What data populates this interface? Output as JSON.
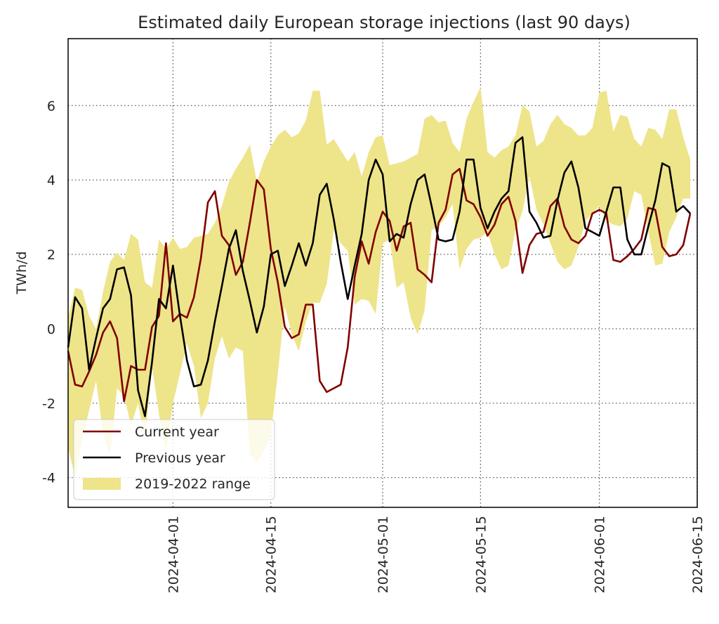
{
  "chart_data": {
    "type": "line",
    "title": "Estimated daily European storage injections (last 90 days)",
    "xlabel": "",
    "ylabel": "TWh/d",
    "xlim": [
      "2024-03-17",
      "2024-06-15"
    ],
    "ylim": [
      -4.8,
      7.8
    ],
    "grid": true,
    "legend_position": "bottom-left",
    "yticks": [
      -4,
      -2,
      0,
      2,
      4,
      6
    ],
    "xticks": [
      "2024-04-01",
      "2024-04-15",
      "2024-05-01",
      "2024-05-15",
      "2024-06-01",
      "2024-06-15"
    ],
    "x": [
      "2024-03-17",
      "2024-03-18",
      "2024-03-19",
      "2024-03-20",
      "2024-03-21",
      "2024-03-22",
      "2024-03-23",
      "2024-03-24",
      "2024-03-25",
      "2024-03-26",
      "2024-03-27",
      "2024-03-28",
      "2024-03-29",
      "2024-03-30",
      "2024-03-31",
      "2024-04-01",
      "2024-04-02",
      "2024-04-03",
      "2024-04-04",
      "2024-04-05",
      "2024-04-06",
      "2024-04-07",
      "2024-04-08",
      "2024-04-09",
      "2024-04-10",
      "2024-04-11",
      "2024-04-12",
      "2024-04-13",
      "2024-04-14",
      "2024-04-15",
      "2024-04-16",
      "2024-04-17",
      "2024-04-18",
      "2024-04-19",
      "2024-04-20",
      "2024-04-21",
      "2024-04-22",
      "2024-04-23",
      "2024-04-24",
      "2024-04-25",
      "2024-04-26",
      "2024-04-27",
      "2024-04-28",
      "2024-04-29",
      "2024-04-30",
      "2024-05-01",
      "2024-05-02",
      "2024-05-03",
      "2024-05-04",
      "2024-05-05",
      "2024-05-06",
      "2024-05-07",
      "2024-05-08",
      "2024-05-09",
      "2024-05-10",
      "2024-05-11",
      "2024-05-12",
      "2024-05-13",
      "2024-05-14",
      "2024-05-15",
      "2024-05-16",
      "2024-05-17",
      "2024-05-18",
      "2024-05-19",
      "2024-05-20",
      "2024-05-21",
      "2024-05-22",
      "2024-05-23",
      "2024-05-24",
      "2024-05-25",
      "2024-05-26",
      "2024-05-27",
      "2024-05-28",
      "2024-05-29",
      "2024-05-30",
      "2024-05-31",
      "2024-06-01",
      "2024-06-02",
      "2024-06-03",
      "2024-06-04",
      "2024-06-05",
      "2024-06-06",
      "2024-06-07",
      "2024-06-08",
      "2024-06-09",
      "2024-06-10",
      "2024-06-11",
      "2024-06-12",
      "2024-06-13",
      "2024-06-14"
    ],
    "series": [
      {
        "name": "Current year",
        "color": "#800000",
        "values": [
          -0.6,
          -1.5,
          -1.55,
          -1.15,
          -0.7,
          -0.1,
          0.2,
          -0.25,
          -1.95,
          -1.0,
          -1.1,
          -1.1,
          0.05,
          0.35,
          2.3,
          0.2,
          0.4,
          0.3,
          0.85,
          1.9,
          3.4,
          3.7,
          2.5,
          2.25,
          1.45,
          1.8,
          2.85,
          4.0,
          3.75,
          2.15,
          1.25,
          0.05,
          -0.25,
          -0.15,
          0.65,
          0.65,
          -1.4,
          -1.7,
          -1.6,
          -1.5,
          -0.5,
          1.4,
          2.35,
          1.75,
          2.6,
          3.15,
          2.9,
          2.1,
          2.75,
          2.85,
          1.6,
          1.45,
          1.25,
          2.85,
          3.2,
          4.15,
          4.3,
          3.45,
          3.35,
          3.0,
          2.5,
          2.8,
          3.35,
          3.55,
          2.9,
          1.5,
          2.25,
          2.55,
          2.6,
          3.3,
          3.5,
          2.75,
          2.4,
          2.3,
          2.5,
          3.1,
          3.2,
          3.1,
          1.85,
          1.8,
          1.95,
          2.15,
          2.4,
          3.25,
          3.2,
          2.2,
          1.95,
          2.0,
          2.25,
          3.1
        ]
      },
      {
        "name": "Previous year",
        "color": "#000000",
        "values": [
          -0.5,
          0.85,
          0.55,
          -1.1,
          -0.25,
          0.55,
          0.8,
          1.6,
          1.65,
          0.9,
          -1.65,
          -2.35,
          -0.9,
          0.8,
          0.55,
          1.7,
          0.35,
          -0.85,
          -1.55,
          -1.5,
          -0.85,
          0.2,
          1.15,
          2.15,
          2.65,
          1.55,
          0.75,
          -0.1,
          0.6,
          2.0,
          2.1,
          1.15,
          1.7,
          2.3,
          1.7,
          2.3,
          3.6,
          3.9,
          2.95,
          1.8,
          0.8,
          1.7,
          2.55,
          4.0,
          4.55,
          4.15,
          2.35,
          2.55,
          2.45,
          3.35,
          4.0,
          4.15,
          3.3,
          2.4,
          2.35,
          2.4,
          3.15,
          4.55,
          4.55,
          3.25,
          2.7,
          3.15,
          3.5,
          3.7,
          5.0,
          5.15,
          3.15,
          2.85,
          2.45,
          2.5,
          3.45,
          4.2,
          4.5,
          3.8,
          2.7,
          2.6,
          2.5,
          3.15,
          3.8,
          3.8,
          2.4,
          2.0,
          2.0,
          2.75,
          3.45,
          4.45,
          4.35,
          3.15,
          3.3,
          3.1
        ]
      }
    ],
    "range": {
      "name": "2019-2022 range",
      "color": "#eee48a",
      "upper": [
        0.3,
        1.1,
        1.05,
        0.35,
        0.0,
        1.0,
        1.8,
        2.05,
        1.85,
        2.55,
        2.4,
        1.25,
        1.1,
        2.4,
        2.15,
        2.45,
        2.15,
        2.2,
        2.45,
        2.5,
        2.55,
        2.85,
        3.3,
        3.95,
        4.3,
        4.6,
        4.95,
        3.95,
        4.5,
        4.9,
        5.2,
        5.35,
        5.15,
        5.25,
        5.6,
        6.4,
        6.4,
        4.95,
        5.1,
        4.8,
        4.5,
        4.75,
        4.1,
        4.75,
        5.15,
        5.2,
        4.4,
        4.45,
        4.5,
        4.6,
        4.7,
        5.65,
        5.75,
        5.55,
        5.6,
        5.0,
        4.75,
        5.65,
        6.1,
        6.5,
        4.75,
        4.6,
        4.8,
        4.9,
        5.2,
        6.0,
        5.85,
        4.9,
        5.05,
        5.5,
        5.75,
        5.5,
        5.4,
        5.2,
        5.2,
        5.4,
        6.35,
        6.4,
        5.3,
        5.75,
        5.7,
        5.1,
        4.9,
        5.4,
        5.35,
        5.1,
        5.9,
        5.9,
        5.15,
        4.55
      ],
      "lower": [
        -3.2,
        -4.0,
        -3.0,
        -2.2,
        -1.4,
        -2.8,
        -3.4,
        -1.6,
        -1.8,
        -2.6,
        -2.0,
        -3.0,
        -1.0,
        -2.3,
        -3.3,
        -2.0,
        -1.2,
        -0.4,
        -1.0,
        -2.4,
        -2.0,
        -0.8,
        -0.2,
        -0.8,
        -0.5,
        -0.6,
        -3.35,
        -3.6,
        -3.3,
        -2.85,
        -1.2,
        0.6,
        -0.15,
        -0.6,
        0.2,
        0.7,
        0.7,
        1.2,
        2.65,
        2.3,
        2.1,
        0.65,
        0.8,
        0.75,
        0.4,
        2.3,
        2.4,
        1.1,
        1.25,
        0.3,
        -0.15,
        0.5,
        2.65,
        2.75,
        3.0,
        3.35,
        1.6,
        2.15,
        2.4,
        2.45,
        2.6,
        2.0,
        1.6,
        1.7,
        2.65,
        3.15,
        4.1,
        3.2,
        2.8,
        2.3,
        1.8,
        1.6,
        1.7,
        2.2,
        2.9,
        3.1,
        3.3,
        2.9,
        2.8,
        2.75,
        2.95,
        3.7,
        3.6,
        2.6,
        1.7,
        1.75,
        2.6,
        3.0,
        3.5,
        3.5
      ]
    }
  }
}
